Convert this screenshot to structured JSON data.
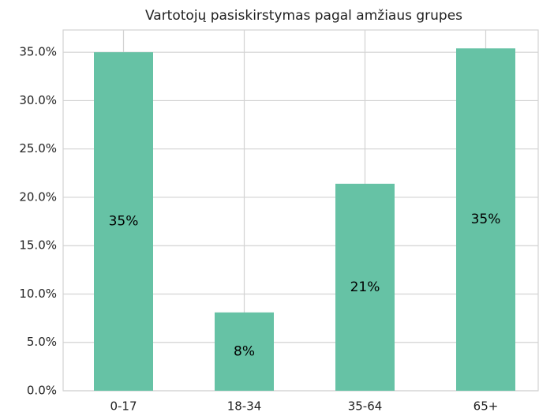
{
  "chart_data": {
    "type": "bar",
    "title": "Vartotojų pasiskirstymas pagal amžiaus grupes",
    "categories": [
      "0-17",
      "18-34",
      "35-64",
      "65+"
    ],
    "values": [
      35.0,
      8.1,
      21.4,
      35.4
    ],
    "value_labels": [
      "35%",
      "8%",
      "21%",
      "35%"
    ],
    "color": "#66c2a5",
    "ylim": [
      0,
      37.3
    ],
    "yticks": [
      {
        "value": 0,
        "label": "0.0%"
      },
      {
        "value": 5,
        "label": "5.0%"
      },
      {
        "value": 10,
        "label": "10.0%"
      },
      {
        "value": 15,
        "label": "15.0%"
      },
      {
        "value": 20,
        "label": "20.0%"
      },
      {
        "value": 25,
        "label": "25.0%"
      },
      {
        "value": 30,
        "label": "30.0%"
      },
      {
        "value": 35,
        "label": "35.0%"
      }
    ],
    "grid": true
  }
}
